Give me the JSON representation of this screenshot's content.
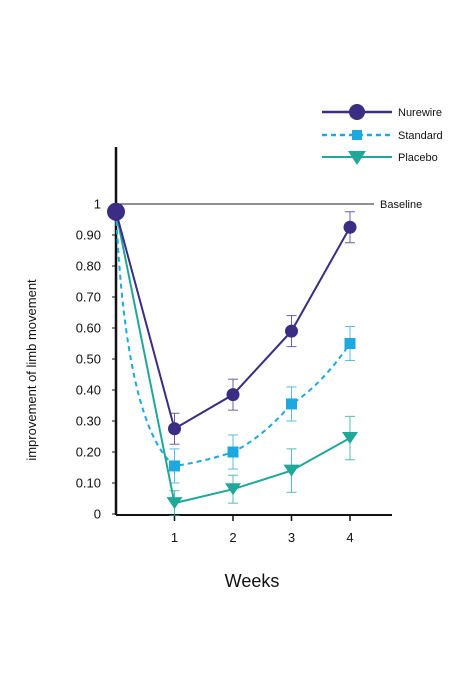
{
  "chart_data": {
    "type": "line",
    "xlabel": "Weeks",
    "ylabel": "improvement of limb movement",
    "x_ticks": [
      "1",
      "2",
      "3",
      "4"
    ],
    "y_ticks": [
      "0",
      "0.10",
      "0.20",
      "0.30",
      "0.40",
      "0.50",
      "0.60",
      "0.70",
      "0.80",
      "0.90",
      "1"
    ],
    "ylim": [
      0,
      1
    ],
    "xlim": [
      0,
      4.8
    ],
    "grid": false,
    "legend_position": "top-right",
    "baseline": {
      "label": "Baseline",
      "value": 1.0
    },
    "series": [
      {
        "name": "Nurewire",
        "color": "#3b2c84",
        "marker": "circle",
        "line_style": "solid",
        "x": [
          0,
          1,
          2,
          3,
          4
        ],
        "y": [
          0.975,
          0.275,
          0.385,
          0.59,
          0.925
        ],
        "err": [
          0,
          0.05,
          0.05,
          0.05,
          0.05
        ]
      },
      {
        "name": "Standard",
        "color": "#1ea8e0",
        "marker": "square",
        "line_style": "dashed",
        "x": [
          0,
          1,
          2,
          3,
          4
        ],
        "y": [
          0.975,
          0.155,
          0.2,
          0.355,
          0.55
        ],
        "err": [
          0,
          0.055,
          0.055,
          0.055,
          0.055
        ]
      },
      {
        "name": "Placebo",
        "color": "#1fa79a",
        "marker": "triangle-down",
        "line_style": "solid",
        "x": [
          0,
          1,
          2,
          3,
          4
        ],
        "y": [
          0.975,
          0.035,
          0.08,
          0.14,
          0.245
        ],
        "err": [
          0,
          0.04,
          0.045,
          0.07,
          0.07
        ]
      }
    ]
  }
}
